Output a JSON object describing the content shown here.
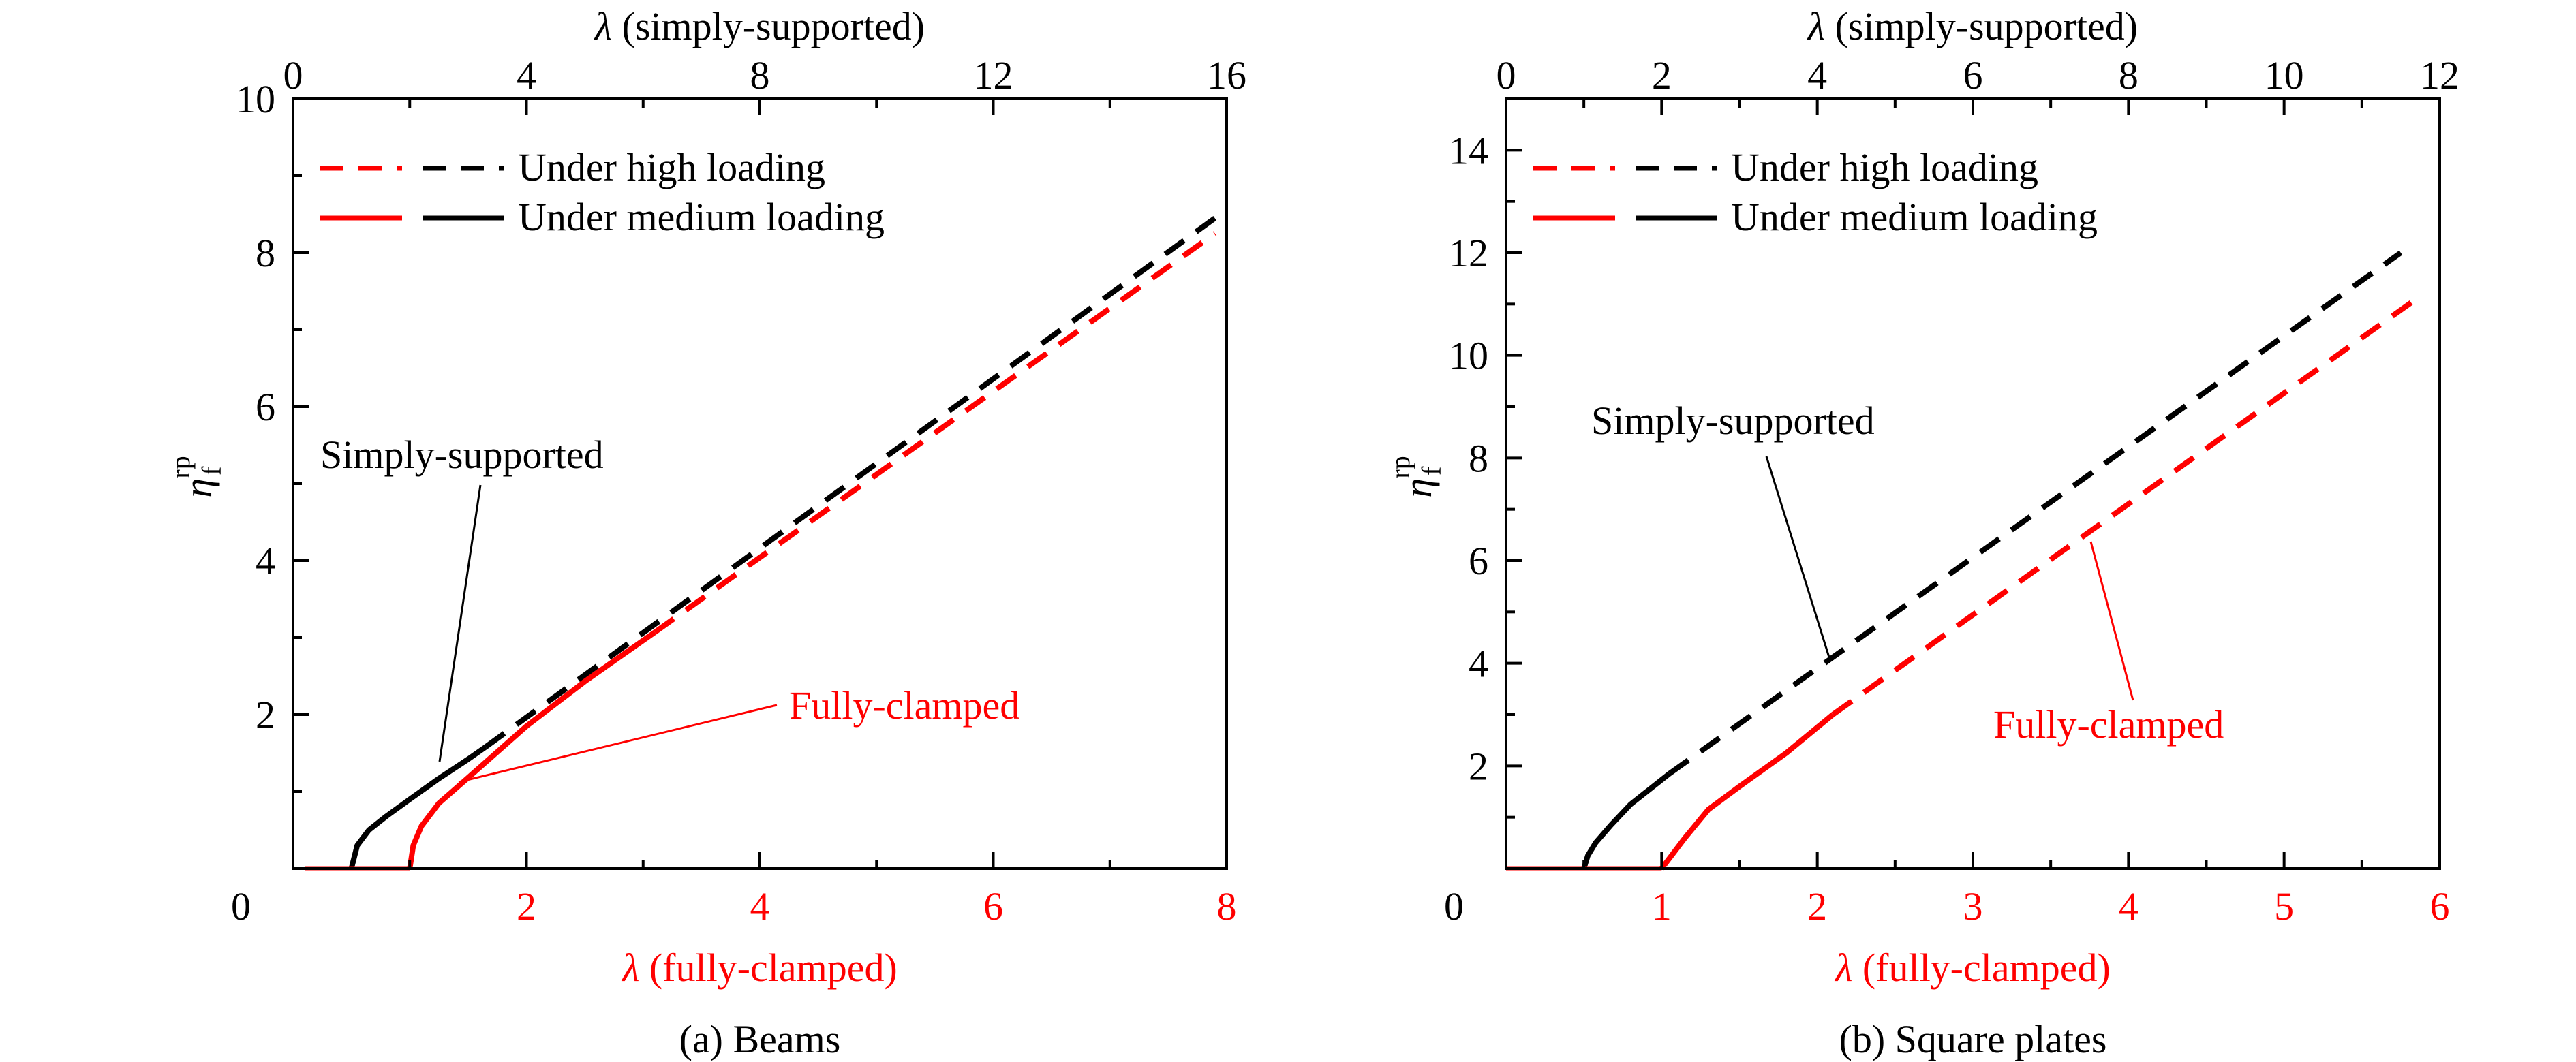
{
  "figure": {
    "caption_a": "(a) Beams",
    "caption_b": "(b) Square plates"
  },
  "colors": {
    "simply_supported": "#000000",
    "fully_clamped": "#ff0000"
  },
  "chart_data": [
    {
      "type": "line",
      "panel": "a",
      "caption": "(a) Beams",
      "ylabel": "η_f^rp",
      "ylabel_main": "η",
      "ylabel_sub": "f",
      "ylabel_sup": "rp",
      "xlabel_top": "λ (simply-supported)",
      "xlabel_bottom": "λ (fully-clamped)",
      "xlabel_symbol": "λ",
      "xlabel_top_text": " (simply-supported)",
      "xlabel_bottom_text": " (fully-clamped)",
      "x_top_range": [
        0,
        16
      ],
      "x_top_ticks": [
        0,
        4,
        8,
        12,
        16
      ],
      "x_bottom_range": [
        0,
        8
      ],
      "x_bottom_ticks": [
        0,
        2,
        4,
        6,
        8
      ],
      "y_range": [
        0,
        10
      ],
      "y_ticks": [
        2,
        4,
        6,
        8,
        10
      ],
      "y_minor_step": 1,
      "grid": false,
      "legend": [
        {
          "label": "Under high loading",
          "style": "dashed"
        },
        {
          "label": "Under medium loading",
          "style": "solid"
        }
      ],
      "annotations": [
        {
          "text": "Simply-supported",
          "color": "#000000"
        },
        {
          "text": "Fully-clamped",
          "color": "#ff0000"
        }
      ],
      "series": [
        {
          "name": "Simply-supported",
          "loading": "medium",
          "axis": "top",
          "color": "#000000",
          "dash": false,
          "x": [
            1.0,
            1.1,
            1.3,
            1.6,
            2.0,
            2.5,
            3.0,
            3.3
          ],
          "y": [
            0,
            0.3,
            0.5,
            0.68,
            0.9,
            1.17,
            1.42,
            1.58
          ]
        },
        {
          "name": "Simply-supported",
          "loading": "high",
          "axis": "top",
          "color": "#000000",
          "dash": true,
          "x": [
            3.3,
            15.8
          ],
          "y": [
            1.58,
            8.45
          ]
        },
        {
          "name": "Fully-clamped",
          "loading": "medium",
          "axis": "bottom",
          "color": "#ff0000",
          "dash": false,
          "x": [
            1.0,
            1.03,
            1.1,
            1.25,
            1.5,
            2.0,
            2.5,
            3.1
          ],
          "y": [
            0,
            0.3,
            0.55,
            0.85,
            1.18,
            1.85,
            2.43,
            3.07
          ]
        },
        {
          "name": "Fully-clamped",
          "loading": "high",
          "axis": "bottom",
          "color": "#ff0000",
          "dash": true,
          "x": [
            3.1,
            7.9
          ],
          "y": [
            3.07,
            8.25
          ]
        },
        {
          "name": "Fully-clamped",
          "loading": "zero",
          "axis": "bottom",
          "color": "#ff0000",
          "dash": false,
          "x": [
            0.1,
            1.0
          ],
          "y": [
            0,
            0
          ]
        }
      ]
    },
    {
      "type": "line",
      "panel": "b",
      "caption": "(b) Square plates",
      "ylabel": "η_f^rp",
      "ylabel_main": "η",
      "ylabel_sub": "f",
      "ylabel_sup": "rp",
      "xlabel_top": "λ (simply-supported)",
      "xlabel_bottom": "λ (fully-clamped)",
      "xlabel_symbol": "λ",
      "xlabel_top_text": " (simply-supported)",
      "xlabel_bottom_text": " (fully-clamped)",
      "x_top_range": [
        0,
        12
      ],
      "x_top_ticks": [
        0,
        2,
        4,
        6,
        8,
        10,
        12
      ],
      "x_bottom_range": [
        0,
        6
      ],
      "x_bottom_ticks": [
        0,
        1,
        2,
        3,
        4,
        5,
        6
      ],
      "y_range": [
        0,
        15
      ],
      "y_ticks": [
        2,
        4,
        6,
        8,
        10,
        12,
        14
      ],
      "y_minor_step": 1,
      "grid": false,
      "legend": [
        {
          "label": "Under high loading",
          "style": "dashed"
        },
        {
          "label": "Under medium loading",
          "style": "solid"
        }
      ],
      "annotations": [
        {
          "text": "Simply-supported",
          "color": "#000000"
        },
        {
          "text": "Fully-clamped",
          "color": "#ff0000"
        }
      ],
      "series": [
        {
          "name": "Simply-supported",
          "loading": "medium",
          "axis": "top",
          "color": "#000000",
          "dash": false,
          "x": [
            1.0,
            1.05,
            1.15,
            1.35,
            1.6,
            1.85,
            2.1
          ],
          "y": [
            0,
            0.25,
            0.5,
            0.85,
            1.25,
            1.55,
            1.85
          ]
        },
        {
          "name": "Simply-supported",
          "loading": "high",
          "axis": "top",
          "color": "#000000",
          "dash": true,
          "x": [
            2.1,
            11.5
          ],
          "y": [
            1.85,
            12.0
          ]
        },
        {
          "name": "Fully-clamped",
          "loading": "medium",
          "axis": "bottom",
          "color": "#ff0000",
          "dash": false,
          "x": [
            1.0,
            1.15,
            1.3,
            1.5,
            1.8,
            2.1
          ],
          "y": [
            0,
            0.6,
            1.15,
            1.6,
            2.25,
            3.0
          ]
        },
        {
          "name": "Fully-clamped",
          "loading": "high",
          "axis": "bottom",
          "color": "#ff0000",
          "dash": true,
          "x": [
            2.1,
            5.85
          ],
          "y": [
            3.0,
            11.1
          ]
        },
        {
          "name": "Fully-clamped",
          "loading": "zero",
          "axis": "bottom",
          "color": "#ff0000",
          "dash": false,
          "x": [
            0.0,
            1.0
          ],
          "y": [
            0,
            0
          ]
        }
      ]
    }
  ]
}
